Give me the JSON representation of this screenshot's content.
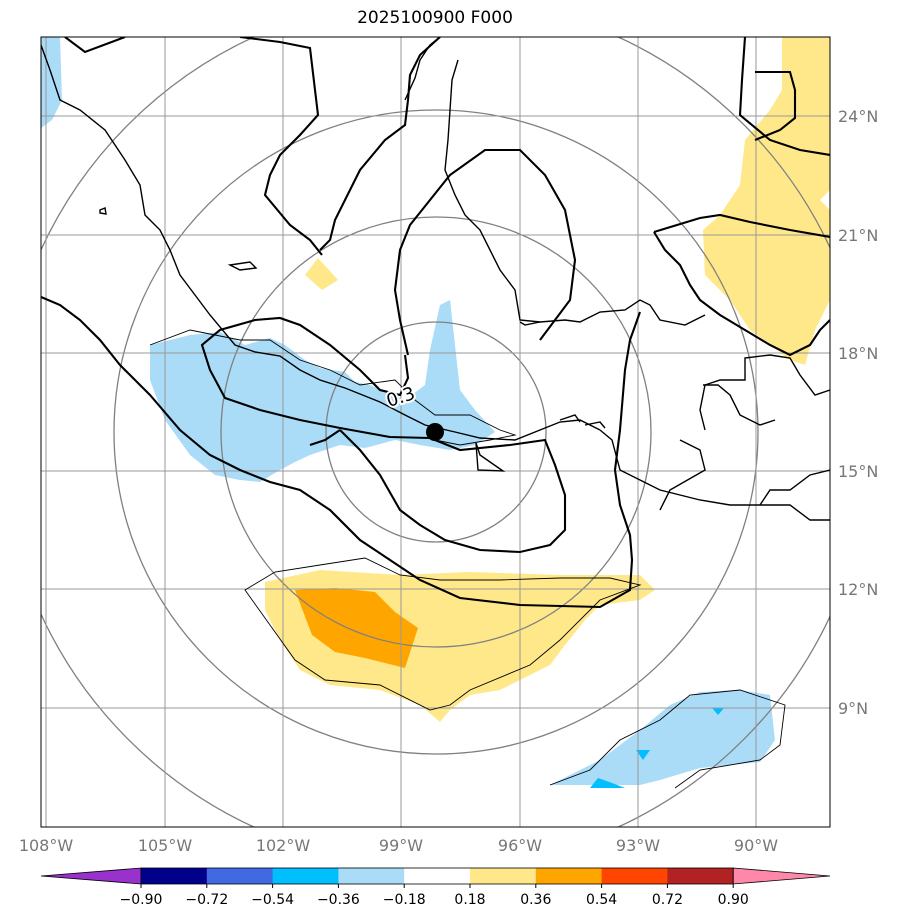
{
  "title": "2025100900 F000",
  "map": {
    "lon_labels": [
      "108°W",
      "105°W",
      "102°W",
      "99°W",
      "96°W",
      "93°W",
      "90°W"
    ],
    "lat_labels": [
      "24°N",
      "21°N",
      "18°N",
      "15°N",
      "12°N",
      "9°N"
    ],
    "contour_label": "0.3",
    "marker": "center-point"
  },
  "colorbar": {
    "ticks": [
      "−0.90",
      "−0.72",
      "−0.54",
      "−0.36",
      "−0.18",
      "0.18",
      "0.36",
      "0.54",
      "0.72",
      "0.90"
    ],
    "colors": [
      "#9932cc",
      "#00008b",
      "#4169e1",
      "#00bfff",
      "#aadcf8",
      "#ffffff",
      "#ffe88a",
      "#ffa500",
      "#ff4500",
      "#b22222",
      "#ff88aa"
    ]
  }
}
